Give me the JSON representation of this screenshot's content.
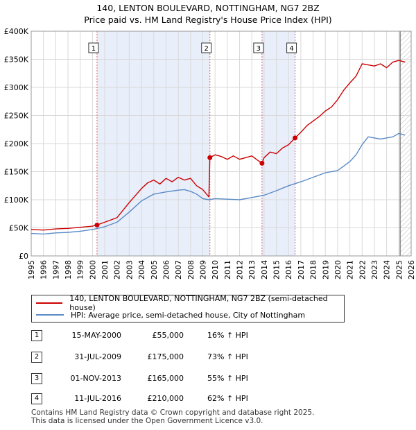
{
  "header": {
    "title": "140, LENTON BOULEVARD, NOTTINGHAM, NG7 2BZ",
    "subtitle": "Price paid vs. HM Land Registry's House Price Index (HPI)"
  },
  "colors": {
    "price": "#cc0000",
    "hpi": "#5a8ac6",
    "shade": "#e8eefa",
    "grid": "#d9d9d9"
  },
  "legend": {
    "price_label": "140, LENTON BOULEVARD, NOTTINGHAM, NG7 2BZ (semi-detached house)",
    "hpi_label": "HPI: Average price, semi-detached house, City of Nottingham"
  },
  "transactions": [
    {
      "num": "1",
      "date": "15-MAY-2000",
      "price": "£55,000",
      "hpi": "16% ↑ HPI"
    },
    {
      "num": "2",
      "date": "31-JUL-2009",
      "price": "£175,000",
      "hpi": "73% ↑ HPI"
    },
    {
      "num": "3",
      "date": "01-NOV-2013",
      "price": "£165,000",
      "hpi": "55% ↑ HPI"
    },
    {
      "num": "4",
      "date": "11-JUL-2016",
      "price": "£210,000",
      "hpi": "62% ↑ HPI"
    }
  ],
  "footer": {
    "line1": "Contains HM Land Registry data © Crown copyright and database right 2025.",
    "line2": "This data is licensed under the Open Government Licence v3.0."
  },
  "chart_data": {
    "type": "line",
    "title": "140, LENTON BOULEVARD, NOTTINGHAM, NG7 2BZ",
    "subtitle": "Price paid vs. HM Land Registry's House Price Index (HPI)",
    "xlim": [
      1995,
      2026
    ],
    "ylim": [
      0,
      400000
    ],
    "yticks": [
      0,
      50000,
      100000,
      150000,
      200000,
      250000,
      300000,
      350000,
      400000
    ],
    "ytick_labels": [
      "£0",
      "£50K",
      "£100K",
      "£150K",
      "£200K",
      "£250K",
      "£300K",
      "£350K",
      "£400K"
    ],
    "xticks": [
      1995,
      1996,
      1997,
      1998,
      1999,
      2000,
      2001,
      2002,
      2003,
      2004,
      2005,
      2006,
      2007,
      2008,
      2009,
      2010,
      2011,
      2012,
      2013,
      2014,
      2015,
      2016,
      2017,
      2018,
      2019,
      2020,
      2021,
      2022,
      2023,
      2024,
      2025,
      2026
    ],
    "xtick_labels": [
      "1995",
      "1996",
      "1997",
      "1998",
      "1999",
      "2000",
      "2001",
      "2002",
      "2003",
      "2004",
      "2005",
      "2006",
      "2007",
      "2008",
      "2009",
      "2010",
      "2011",
      "2012",
      "2013",
      "2014",
      "2015",
      "2016",
      "2017",
      "2018",
      "2019",
      "2020",
      "2021",
      "2022",
      "2023",
      "2024",
      "2025",
      "2026"
    ],
    "grid": true,
    "shaded_ranges": [
      [
        2000.37,
        2009.58
      ],
      [
        2013.83,
        2016.53
      ]
    ],
    "hatched_range": [
      2025.1,
      2026
    ],
    "series": [
      {
        "name": "140, LENTON BOULEVARD, NOTTINGHAM, NG7 2BZ (semi-detached house)",
        "color": "#cc0000",
        "x": [
          1995,
          1996,
          1997,
          1998,
          1999,
          2000,
          2000.37,
          2001,
          2002,
          2003,
          2004,
          2004.5,
          2005,
          2005.5,
          2006,
          2006.5,
          2007,
          2007.5,
          2008,
          2008.5,
          2009,
          2009.5,
          2009.58,
          2010,
          2010.5,
          2011,
          2011.5,
          2012,
          2012.5,
          2013,
          2013.5,
          2013.83,
          2014,
          2014.5,
          2015,
          2015.5,
          2016,
          2016.53,
          2017,
          2017.5,
          2018,
          2018.5,
          2019,
          2019.5,
          2020,
          2020.5,
          2021,
          2021.5,
          2022,
          2022.5,
          2023,
          2023.5,
          2024,
          2024.5,
          2025,
          2025.5
        ],
        "y": [
          47000,
          46000,
          48000,
          49000,
          51000,
          53000,
          55000,
          60000,
          68000,
          95000,
          120000,
          130000,
          135000,
          128000,
          138000,
          132000,
          140000,
          135000,
          138000,
          125000,
          118000,
          105000,
          175000,
          180000,
          177000,
          172000,
          178000,
          172000,
          175000,
          178000,
          170000,
          165000,
          175000,
          185000,
          182000,
          192000,
          198000,
          210000,
          220000,
          232000,
          240000,
          248000,
          258000,
          265000,
          278000,
          295000,
          308000,
          320000,
          342000,
          340000,
          338000,
          342000,
          335000,
          345000,
          348000,
          345000
        ]
      },
      {
        "name": "HPI: Average price, semi-detached house, City of Nottingham",
        "color": "#5a8ac6",
        "x": [
          1995,
          1996,
          1997,
          1998,
          1999,
          2000,
          2001,
          2002,
          2003,
          2004,
          2005,
          2006,
          2007,
          2007.5,
          2008,
          2008.5,
          2009,
          2009.5,
          2010,
          2011,
          2012,
          2013,
          2014,
          2015,
          2016,
          2017,
          2018,
          2019,
          2020,
          2020.5,
          2021,
          2021.5,
          2022,
          2022.5,
          2023,
          2023.5,
          2024,
          2024.5,
          2025,
          2025.5
        ],
        "y": [
          40000,
          39000,
          41000,
          42000,
          44000,
          47000,
          52000,
          60000,
          78000,
          98000,
          110000,
          114000,
          117000,
          118000,
          115000,
          110000,
          102000,
          100000,
          102000,
          101000,
          100000,
          104000,
          108000,
          116000,
          125000,
          132000,
          140000,
          148000,
          152000,
          160000,
          168000,
          180000,
          198000,
          212000,
          210000,
          208000,
          210000,
          212000,
          218000,
          215000
        ]
      }
    ],
    "markers": [
      {
        "label": "1",
        "x": 2000.37,
        "y": 55000
      },
      {
        "label": "2",
        "x": 2009.58,
        "y": 175000
      },
      {
        "label": "3",
        "x": 2013.83,
        "y": 165000
      },
      {
        "label": "4",
        "x": 2016.53,
        "y": 210000
      }
    ]
  }
}
